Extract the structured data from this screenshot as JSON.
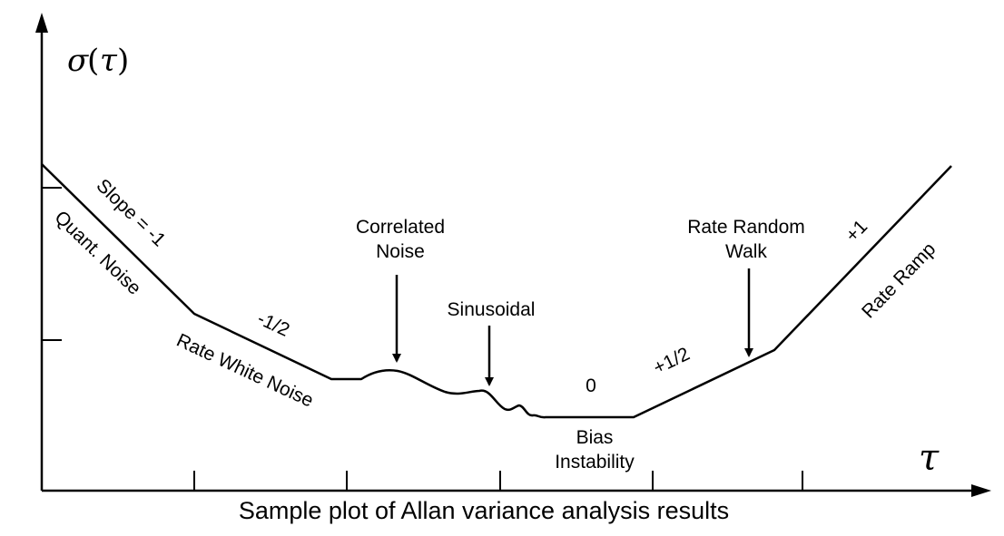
{
  "diagram": {
    "y_axis_label": {
      "symbol": "σ",
      "open": "(",
      "arg": "τ",
      "close": ")"
    },
    "x_axis_label": "τ",
    "segments": {
      "slope_minus_1": "Slope = -1",
      "quant_noise": "Quant. Noise",
      "slope_minus_half": "-1/2",
      "rate_white_noise": "Rate White Noise",
      "correlated_noise_line1": "Correlated",
      "correlated_noise_line2": "Noise",
      "sinusoidal": "Sinusoidal",
      "slope_zero": "0",
      "bias_instability_line1": "Bias",
      "bias_instability_line2": "Instability",
      "slope_plus_half": "+1/2",
      "rate_random_walk_line1": "Rate Random",
      "rate_random_walk_line2": "Walk",
      "slope_plus_1": "+1",
      "rate_ramp": "Rate Ramp"
    }
  },
  "caption": "Sample plot of Allan variance analysis results"
}
